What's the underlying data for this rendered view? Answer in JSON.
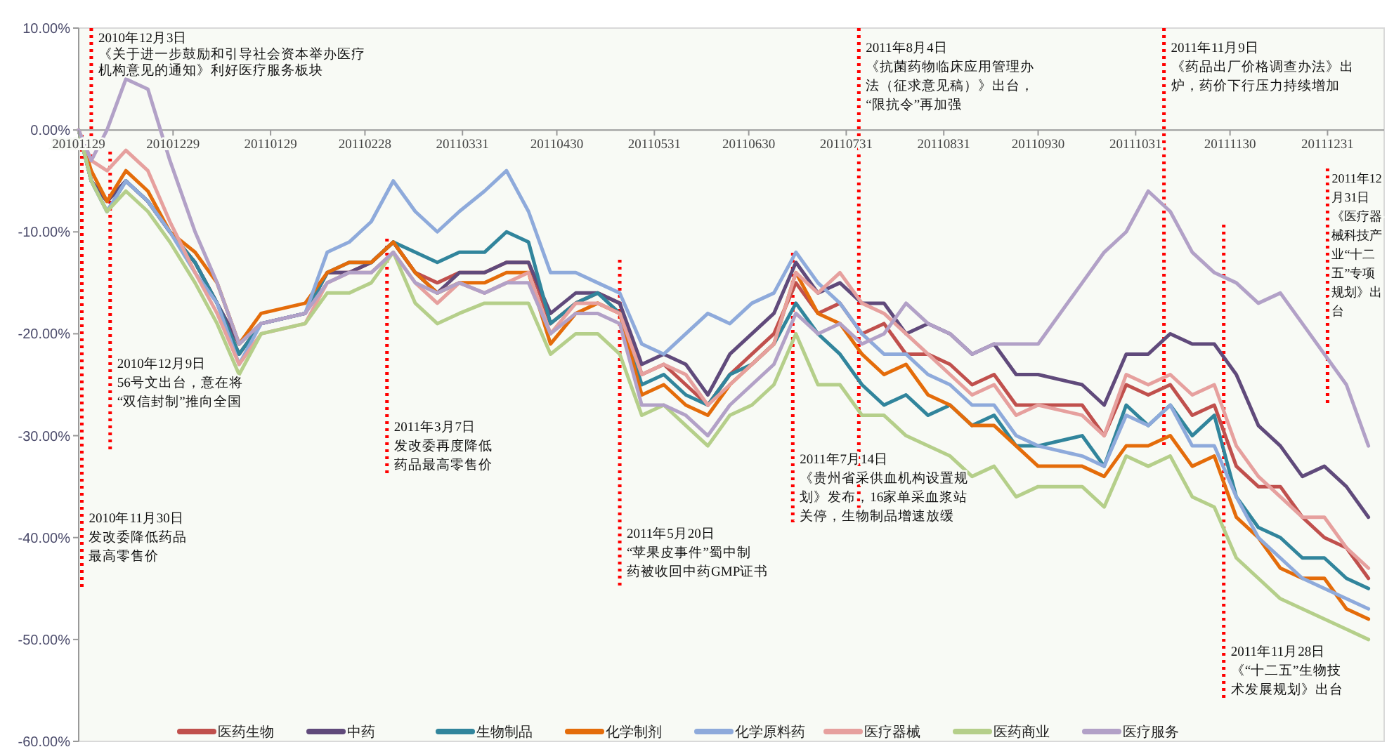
{
  "chart_data": {
    "type": "line",
    "line_style": "solid",
    "marker": "none",
    "grid": false,
    "legend": "bottom",
    "x": [
      "2010-11-29",
      "2010-12-03",
      "2010-12-08",
      "2010-12-14",
      "2010-12-21",
      "2010-12-28",
      "2011-01-05",
      "2011-01-12",
      "2011-01-19",
      "2011-01-26",
      "2011-02-09",
      "2011-02-16",
      "2011-02-23",
      "2011-03-02",
      "2011-03-09",
      "2011-03-16",
      "2011-03-23",
      "2011-03-30",
      "2011-04-07",
      "2011-04-14",
      "2011-04-21",
      "2011-04-28",
      "2011-05-06",
      "2011-05-13",
      "2011-05-20",
      "2011-05-27",
      "2011-06-03",
      "2011-06-10",
      "2011-06-17",
      "2011-06-24",
      "2011-07-01",
      "2011-07-08",
      "2011-07-15",
      "2011-07-22",
      "2011-07-29",
      "2011-08-05",
      "2011-08-12",
      "2011-08-19",
      "2011-08-26",
      "2011-09-02",
      "2011-09-09",
      "2011-09-16",
      "2011-09-23",
      "2011-09-30",
      "2011-10-14",
      "2011-10-21",
      "2011-10-28",
      "2011-11-04",
      "2011-11-11",
      "2011-11-18",
      "2011-11-25",
      "2011-12-02",
      "2011-12-09",
      "2011-12-16",
      "2011-12-23",
      "2011-12-30",
      "2012-01-06",
      "2012-01-13"
    ],
    "xlim": [
      "2010-11-29",
      "2012-01-18"
    ],
    "xticks": [
      {
        "value": "2010-11-29",
        "label": "20101129"
      },
      {
        "value": "2010-12-29",
        "label": "20101229"
      },
      {
        "value": "2011-01-29",
        "label": "20110129"
      },
      {
        "value": "2011-02-28",
        "label": "20110228"
      },
      {
        "value": "2011-03-31",
        "label": "20110331"
      },
      {
        "value": "2011-04-30",
        "label": "20110430"
      },
      {
        "value": "2011-05-31",
        "label": "20110531"
      },
      {
        "value": "2011-06-30",
        "label": "20110630"
      },
      {
        "value": "2011-07-31",
        "label": "20110731"
      },
      {
        "value": "2011-08-31",
        "label": "20110831"
      },
      {
        "value": "2011-09-30",
        "label": "20110930"
      },
      {
        "value": "2011-10-31",
        "label": "20111031"
      },
      {
        "value": "2011-11-30",
        "label": "20111130"
      },
      {
        "value": "2011-12-31",
        "label": "20111231"
      }
    ],
    "ylim": [
      -60,
      10
    ],
    "yticks": [
      {
        "value": -60,
        "label": "-60.00%"
      },
      {
        "value": -50,
        "label": "-50.00%"
      },
      {
        "value": -40,
        "label": "-40.00%"
      },
      {
        "value": -30,
        "label": "-30.00%"
      },
      {
        "value": -20,
        "label": "-20.00%"
      },
      {
        "value": -10,
        "label": "-10.00%"
      },
      {
        "value": 0,
        "label": "0.00%"
      },
      {
        "value": 10,
        "label": "10.00%"
      }
    ],
    "series": [
      {
        "name": "医药生物",
        "color": "#c0504d",
        "values": [
          0,
          -5,
          -7,
          -5,
          -7,
          -10,
          -13,
          -17,
          -22,
          -19,
          -18,
          -14,
          -14,
          -13,
          -11,
          -14,
          -15,
          -14,
          -14,
          -13,
          -13,
          -19,
          -17,
          -16,
          -17,
          -24,
          -23,
          -25,
          -27,
          -24,
          -22,
          -20,
          -15,
          -18,
          -17,
          -20,
          -19,
          -22,
          -22,
          -23,
          -25,
          -24,
          -27,
          -27,
          -27,
          -30,
          -25,
          -26,
          -25,
          -28,
          -27,
          -33,
          -35,
          -35,
          -38,
          -40,
          -41,
          -44
        ]
      },
      {
        "name": "中药",
        "color": "#604a7b",
        "values": [
          0,
          -5,
          -7,
          -5,
          -7,
          -10,
          -13,
          -17,
          -21,
          -19,
          -18,
          -14,
          -14,
          -13,
          -11,
          -14,
          -16,
          -14,
          -14,
          -13,
          -13,
          -18,
          -16,
          -16,
          -17,
          -23,
          -22,
          -23,
          -26,
          -22,
          -20,
          -18,
          -13,
          -16,
          -15,
          -17,
          -17,
          -20,
          -19,
          -20,
          -22,
          -21,
          -24,
          -24,
          -25,
          -27,
          -22,
          -22,
          -20,
          -21,
          -21,
          -24,
          -29,
          -31,
          -34,
          -33,
          -35,
          -38
        ]
      },
      {
        "name": "生物制品",
        "color": "#31859c",
        "values": [
          0,
          -5,
          -8,
          -5,
          -7,
          -10,
          -13,
          -17,
          -22,
          -19,
          -18,
          -14,
          -13,
          -13,
          -11,
          -12,
          -13,
          -12,
          -12,
          -10,
          -11,
          -19,
          -17,
          -16,
          -18,
          -25,
          -24,
          -26,
          -27,
          -24,
          -23,
          -21,
          -17,
          -20,
          -22,
          -25,
          -27,
          -26,
          -28,
          -27,
          -29,
          -28,
          -31,
          -31,
          -30,
          -33,
          -27,
          -29,
          -27,
          -30,
          -28,
          -36,
          -39,
          -40,
          -42,
          -42,
          -44,
          -45
        ]
      },
      {
        "name": "化学制剂",
        "color": "#e46c0a",
        "values": [
          0,
          -4,
          -7,
          -4,
          -6,
          -10,
          -12,
          -15,
          -21,
          -18,
          -17,
          -14,
          -13,
          -13,
          -11,
          -14,
          -16,
          -15,
          -15,
          -14,
          -14,
          -21,
          -18,
          -17,
          -18,
          -26,
          -25,
          -27,
          -28,
          -25,
          -23,
          -21,
          -14,
          -18,
          -19,
          -22,
          -24,
          -23,
          -26,
          -27,
          -29,
          -29,
          -31,
          -33,
          -33,
          -34,
          -31,
          -31,
          -30,
          -33,
          -32,
          -38,
          -40,
          -43,
          -44,
          -44,
          -47,
          -48
        ]
      },
      {
        "name": "化学原料药",
        "color": "#8eaadb",
        "values": [
          0,
          -5,
          -8,
          -5,
          -7,
          -10,
          -14,
          -17,
          -23,
          -19,
          -18,
          -12,
          -11,
          -9,
          -5,
          -8,
          -10,
          -8,
          -6,
          -4,
          -8,
          -14,
          -14,
          -15,
          -16,
          -21,
          -22,
          -20,
          -18,
          -19,
          -17,
          -16,
          -12,
          -15,
          -17,
          -20,
          -22,
          -22,
          -24,
          -25,
          -27,
          -27,
          -30,
          -31,
          -32,
          -33,
          -28,
          -29,
          -27,
          -31,
          -31,
          -36,
          -40,
          -42,
          -44,
          -45,
          -46,
          -47
        ]
      },
      {
        "name": "医疗器械",
        "color": "#e6a09e",
        "values": [
          0,
          -3,
          -4,
          -2,
          -4,
          -9,
          -14,
          -18,
          -23,
          -20,
          -19,
          -15,
          -14,
          -14,
          -12,
          -15,
          -17,
          -15,
          -16,
          -15,
          -14,
          -20,
          -17,
          -17,
          -18,
          -24,
          -23,
          -24,
          -27,
          -25,
          -23,
          -21,
          -14,
          -16,
          -14,
          -17,
          -18,
          -20,
          -22,
          -24,
          -26,
          -25,
          -28,
          -27,
          -28,
          -30,
          -24,
          -25,
          -24,
          -26,
          -25,
          -31,
          -34,
          -36,
          -38,
          -38,
          -41,
          -43
        ]
      },
      {
        "name": "医药商业",
        "color": "#b5cf8a",
        "values": [
          0,
          -5,
          -8,
          -6,
          -8,
          -11,
          -15,
          -19,
          -24,
          -20,
          -19,
          -16,
          -16,
          -15,
          -12,
          -17,
          -19,
          -18,
          -17,
          -17,
          -17,
          -22,
          -20,
          -20,
          -22,
          -28,
          -27,
          -29,
          -31,
          -28,
          -27,
          -25,
          -20,
          -25,
          -25,
          -28,
          -28,
          -30,
          -31,
          -32,
          -34,
          -33,
          -36,
          -35,
          -35,
          -37,
          -32,
          -33,
          -32,
          -36,
          -37,
          -42,
          -44,
          -46,
          -47,
          -48,
          -49,
          -50
        ]
      },
      {
        "name": "医疗服务",
        "color": "#b2a1c7",
        "values": [
          0,
          -3,
          0,
          5,
          4,
          -3,
          -10,
          -15,
          -21,
          -19,
          -18,
          -15,
          -14,
          -14,
          -12,
          -15,
          -16,
          -15,
          -16,
          -15,
          -15,
          -20,
          -18,
          -18,
          -19,
          -27,
          -27,
          -28,
          -30,
          -27,
          -25,
          -23,
          -18,
          -20,
          -19,
          -21,
          -20,
          -17,
          -19,
          -20,
          -22,
          -21,
          -21,
          -21,
          -15,
          -12,
          -10,
          -6,
          -8,
          -12,
          -14,
          -15,
          -17,
          -16,
          -19,
          -22,
          -25,
          -31
        ]
      }
    ],
    "ref_lines": [
      {
        "axis": "x",
        "value": "2010-11-30",
        "color": "#ff0000",
        "line_style": "dotted",
        "label": "2010年11月30日发改委降低药品最高零售价"
      },
      {
        "axis": "x",
        "value": "2010-12-03",
        "color": "#ff0000",
        "line_style": "dotted",
        "label": "2010年12月3日《关于进一步鼓励和引导社会资本举办医疗机构意见的通知》利好医疗服务板块"
      },
      {
        "axis": "x",
        "value": "2010-12-09",
        "color": "#ff0000",
        "line_style": "dotted",
        "label": "2010年12月9日56号文出台，意在将“双信封制”推向全国"
      },
      {
        "axis": "x",
        "value": "2011-03-07",
        "color": "#ff0000",
        "line_style": "dotted",
        "label": "2011年3月7日发改委再度降低药品最高零售价"
      },
      {
        "axis": "x",
        "value": "2011-05-20",
        "color": "#ff0000",
        "line_style": "dotted",
        "label": "2011年5月20日“苹果皮事件”蜀中制药被收回中药GMP证书"
      },
      {
        "axis": "x",
        "value": "2011-07-14",
        "color": "#ff0000",
        "line_style": "dotted",
        "label": "2011年7月14日《贵州省采供血机构设置规划》发布，16家单采血浆站关停，生物制品增速放缓"
      },
      {
        "axis": "x",
        "value": "2011-08-04",
        "color": "#ff0000",
        "line_style": "dotted",
        "label": "2011年8月4日《抗菌药物临床应用管理办法（征求意见稿）》出台，“限抗令”再加强"
      },
      {
        "axis": "x",
        "value": "2011-11-09",
        "color": "#ff0000",
        "line_style": "dotted",
        "label": "2011年11月9日《药品出厂价格调查办法》出炉，药价下行压力持续增加"
      },
      {
        "axis": "x",
        "value": "2011-11-28",
        "color": "#ff0000",
        "line_style": "dotted",
        "label": "2011年11月28日《“十二五”生物技术发展规划》出台"
      },
      {
        "axis": "x",
        "value": "2011-12-31",
        "color": "#ff0000",
        "line_style": "dotted",
        "label": "2011年12月31日《医疗器械科技产业“十二五”专项规划》出台"
      }
    ]
  }
}
